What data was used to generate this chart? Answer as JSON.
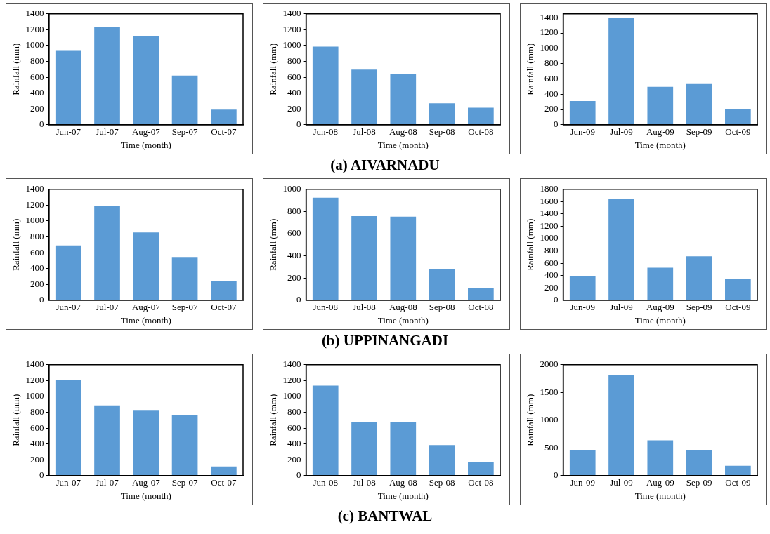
{
  "chart_data": [
    {
      "type": "bar",
      "xlabel": "Time (month)",
      "ylabel": "Rainfall (mm)",
      "categories": [
        "Jun-07",
        "Jul-07",
        "Aug-07",
        "Sep-07",
        "Oct-07"
      ],
      "values": [
        950,
        1240,
        1130,
        630,
        200
      ],
      "color": "#5b9bd5",
      "ylim": [
        0,
        1400
      ],
      "yticks": [
        0,
        200,
        400,
        600,
        800,
        1000,
        1200,
        1400
      ],
      "grid": false,
      "legend": false
    },
    {
      "type": "bar",
      "xlabel": "Time (month)",
      "ylabel": "Rainfall (mm)",
      "categories": [
        "Jun-08",
        "Jul-08",
        "Aug-08",
        "Sep-08",
        "Oct-08"
      ],
      "values": [
        995,
        705,
        655,
        280,
        225
      ],
      "color": "#5b9bd5",
      "ylim": [
        0,
        1400
      ],
      "yticks": [
        0,
        200,
        400,
        600,
        800,
        1000,
        1200,
        1400
      ],
      "grid": false,
      "legend": false,
      "annotations": [
        "(a) AIVARNADU"
      ]
    },
    {
      "type": "bar",
      "xlabel": "Time (month)",
      "ylabel": "Rainfall (mm)",
      "categories": [
        "Jun-09",
        "Jul-09",
        "Aug-09",
        "Sep-09",
        "Oct-09"
      ],
      "values": [
        320,
        1405,
        505,
        550,
        215
      ],
      "color": "#5b9bd5",
      "ylim": [
        0,
        1450
      ],
      "yticks": [
        0,
        200,
        400,
        600,
        800,
        1000,
        1200,
        1400
      ],
      "grid": false,
      "legend": false
    },
    {
      "type": "bar",
      "xlabel": "Time (month)",
      "ylabel": "Rainfall (mm)",
      "categories": [
        "Jun-07",
        "Jul-07",
        "Aug-07",
        "Sep-07",
        "Oct-07"
      ],
      "values": [
        700,
        1195,
        865,
        555,
        255
      ],
      "color": "#5b9bd5",
      "ylim": [
        0,
        1400
      ],
      "yticks": [
        0,
        200,
        400,
        600,
        800,
        1000,
        1200,
        1400
      ],
      "grid": false,
      "legend": false
    },
    {
      "type": "bar",
      "xlabel": "Time (month)",
      "ylabel": "Rainfall (mm)",
      "categories": [
        "Jun-08",
        "Jul-08",
        "Aug-08",
        "Sep-08",
        "Oct-08"
      ],
      "values": [
        930,
        765,
        760,
        290,
        115
      ],
      "color": "#5b9bd5",
      "ylim": [
        0,
        1000
      ],
      "yticks": [
        0,
        200,
        400,
        600,
        800,
        1000
      ],
      "grid": false,
      "legend": false,
      "annotations": [
        "(b) UPPINANGADI"
      ]
    },
    {
      "type": "bar",
      "xlabel": "Time (month)",
      "ylabel": "Rainfall (mm)",
      "categories": [
        "Jun-09",
        "Jul-09",
        "Aug-09",
        "Sep-09",
        "Oct-09"
      ],
      "values": [
        400,
        1650,
        540,
        725,
        360
      ],
      "color": "#5b9bd5",
      "ylim": [
        0,
        1800
      ],
      "yticks": [
        0,
        200,
        400,
        600,
        800,
        1000,
        1200,
        1400,
        1600,
        1800
      ],
      "grid": false,
      "legend": false
    },
    {
      "type": "bar",
      "xlabel": "Time (month)",
      "ylabel": "Rainfall (mm)",
      "categories": [
        "Jun-07",
        "Jul-07",
        "Aug-07",
        "Sep-07",
        "Oct-07"
      ],
      "values": [
        1215,
        895,
        830,
        770,
        125
      ],
      "color": "#5b9bd5",
      "ylim": [
        0,
        1400
      ],
      "yticks": [
        0,
        200,
        400,
        600,
        800,
        1000,
        1200,
        1400
      ],
      "grid": false,
      "legend": false
    },
    {
      "type": "bar",
      "xlabel": "Time (month)",
      "ylabel": "Rainfall (mm)",
      "categories": [
        "Jun-08",
        "Jul-08",
        "Aug-08",
        "Sep-08",
        "Oct-08"
      ],
      "values": [
        1145,
        690,
        690,
        395,
        185
      ],
      "color": "#5b9bd5",
      "ylim": [
        0,
        1400
      ],
      "yticks": [
        0,
        200,
        400,
        600,
        800,
        1000,
        1200,
        1400
      ],
      "grid": false,
      "legend": false,
      "annotations": [
        "(c) BANTWAL"
      ]
    },
    {
      "type": "bar",
      "xlabel": "Time (month)",
      "ylabel": "Rainfall (mm)",
      "categories": [
        "Jun-09",
        "Jul-09",
        "Aug-09",
        "Sep-09",
        "Oct-09"
      ],
      "values": [
        470,
        1830,
        650,
        465,
        190
      ],
      "color": "#5b9bd5",
      "ylim": [
        0,
        2000
      ],
      "yticks": [
        0,
        500,
        1000,
        1500,
        2000
      ],
      "grid": false,
      "legend": false
    }
  ]
}
